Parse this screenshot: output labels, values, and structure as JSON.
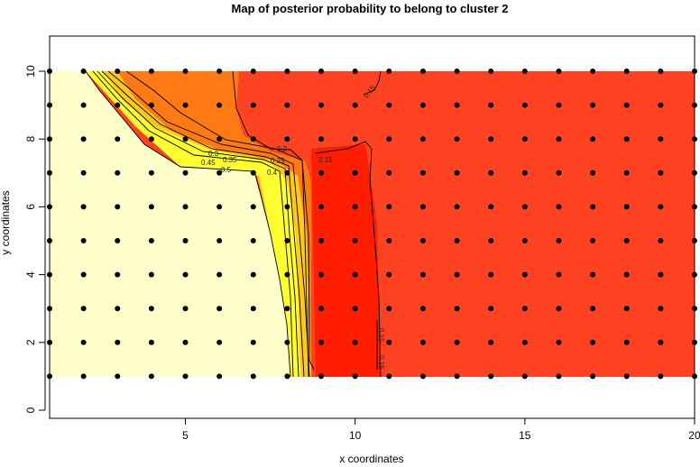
{
  "chart_data": {
    "type": "heatmap",
    "title": "Map of posterior probability to belong to cluster  2",
    "xlabel": "x coordinates",
    "ylabel": "y coordinates",
    "xlim": [
      1,
      20
    ],
    "ylim": [
      0,
      11
    ],
    "x_ticks": [
      "5",
      "10",
      "15",
      "20"
    ],
    "y_ticks": [
      "0",
      "2",
      "4",
      "6",
      "8",
      "10"
    ],
    "grid_points": {
      "x": [
        1,
        2,
        3,
        4,
        5,
        6,
        7,
        8,
        9,
        10,
        11,
        12,
        13,
        14,
        15,
        16,
        17,
        18,
        19,
        20
      ],
      "y": [
        1,
        2,
        3,
        4,
        5,
        6,
        7,
        8,
        9,
        10
      ]
    },
    "contour_levels": [
      "0.15",
      "0.15",
      "0.2",
      "0.25",
      "0.3",
      "0.35",
      "0.4",
      "0.45",
      "0.5",
      "0.15",
      "0.15"
    ],
    "colors": {
      "low": "#FF1A00",
      "mid_low": "#FF4020",
      "mid": "#FF7A10",
      "high": "#FFFF20",
      "highest": "#FFFFCC"
    }
  }
}
